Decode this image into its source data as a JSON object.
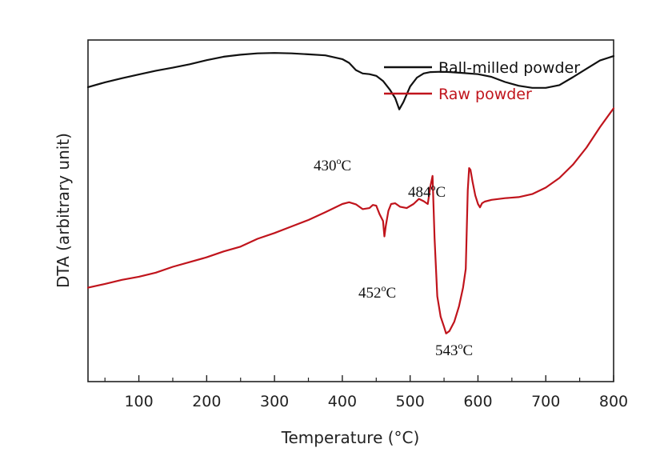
{
  "chart_data": {
    "type": "line",
    "xlabel": "Temperature (°C)",
    "ylabel": "DTA (arbitrary unit)",
    "xlim": [
      25,
      800
    ],
    "xticks": [
      100,
      200,
      300,
      400,
      500,
      600,
      700,
      800
    ],
    "yticks_shown": false,
    "legend_position": "top-right",
    "series": [
      {
        "name": "Ball-milled powder",
        "color": "#111111",
        "points": [
          [
            25,
            0.862
          ],
          [
            50,
            0.876
          ],
          [
            75,
            0.888
          ],
          [
            100,
            0.899
          ],
          [
            125,
            0.91
          ],
          [
            150,
            0.919
          ],
          [
            175,
            0.929
          ],
          [
            200,
            0.941
          ],
          [
            225,
            0.951
          ],
          [
            250,
            0.957
          ],
          [
            275,
            0.961
          ],
          [
            300,
            0.962
          ],
          [
            325,
            0.961
          ],
          [
            350,
            0.958
          ],
          [
            375,
            0.955
          ],
          [
            400,
            0.944
          ],
          [
            410,
            0.933
          ],
          [
            420,
            0.912
          ],
          [
            430,
            0.902
          ],
          [
            440,
            0.9
          ],
          [
            450,
            0.895
          ],
          [
            460,
            0.88
          ],
          [
            470,
            0.855
          ],
          [
            478,
            0.83
          ],
          [
            484,
            0.797
          ],
          [
            490,
            0.818
          ],
          [
            500,
            0.864
          ],
          [
            510,
            0.89
          ],
          [
            520,
            0.902
          ],
          [
            530,
            0.906
          ],
          [
            545,
            0.907
          ],
          [
            560,
            0.906
          ],
          [
            580,
            0.903
          ],
          [
            600,
            0.9
          ],
          [
            620,
            0.892
          ],
          [
            640,
            0.877
          ],
          [
            660,
            0.866
          ],
          [
            680,
            0.86
          ],
          [
            700,
            0.86
          ],
          [
            720,
            0.868
          ],
          [
            740,
            0.891
          ],
          [
            760,
            0.916
          ],
          [
            780,
            0.94
          ],
          [
            800,
            0.953
          ]
        ]
      },
      {
        "name": "Raw powder",
        "color": "#c0141c",
        "points": [
          [
            25,
            0.275
          ],
          [
            50,
            0.286
          ],
          [
            75,
            0.298
          ],
          [
            100,
            0.307
          ],
          [
            125,
            0.319
          ],
          [
            150,
            0.336
          ],
          [
            175,
            0.35
          ],
          [
            200,
            0.364
          ],
          [
            225,
            0.381
          ],
          [
            250,
            0.395
          ],
          [
            275,
            0.418
          ],
          [
            300,
            0.435
          ],
          [
            325,
            0.454
          ],
          [
            350,
            0.473
          ],
          [
            375,
            0.496
          ],
          [
            400,
            0.52
          ],
          [
            410,
            0.525
          ],
          [
            420,
            0.519
          ],
          [
            430,
            0.505
          ],
          [
            440,
            0.508
          ],
          [
            445,
            0.517
          ],
          [
            450,
            0.515
          ],
          [
            455,
            0.49
          ],
          [
            460,
            0.47
          ],
          [
            462,
            0.425
          ],
          [
            464,
            0.455
          ],
          [
            468,
            0.5
          ],
          [
            472,
            0.52
          ],
          [
            478,
            0.522
          ],
          [
            485,
            0.512
          ],
          [
            495,
            0.508
          ],
          [
            505,
            0.52
          ],
          [
            513,
            0.535
          ],
          [
            520,
            0.528
          ],
          [
            526,
            0.52
          ],
          [
            530,
            0.573
          ],
          [
            533,
            0.602
          ],
          [
            536,
            0.42
          ],
          [
            540,
            0.25
          ],
          [
            545,
            0.19
          ],
          [
            550,
            0.16
          ],
          [
            553,
            0.141
          ],
          [
            558,
            0.148
          ],
          [
            565,
            0.175
          ],
          [
            572,
            0.22
          ],
          [
            578,
            0.275
          ],
          [
            582,
            0.33
          ],
          [
            585,
            0.56
          ],
          [
            587,
            0.625
          ],
          [
            589,
            0.62
          ],
          [
            592,
            0.585
          ],
          [
            596,
            0.545
          ],
          [
            600,
            0.52
          ],
          [
            603,
            0.51
          ],
          [
            606,
            0.522
          ],
          [
            610,
            0.527
          ],
          [
            620,
            0.532
          ],
          [
            640,
            0.537
          ],
          [
            660,
            0.54
          ],
          [
            680,
            0.549
          ],
          [
            700,
            0.568
          ],
          [
            720,
            0.596
          ],
          [
            740,
            0.635
          ],
          [
            760,
            0.685
          ],
          [
            780,
            0.745
          ],
          [
            800,
            0.8
          ]
        ]
      }
    ],
    "annotations": [
      {
        "base": "430",
        "sup": "o",
        "unit": "C",
        "x": 430,
        "series": "Ball-milled powder"
      },
      {
        "base": "484",
        "sup": "o",
        "unit": "C",
        "x": 484,
        "series": "Ball-milled powder"
      },
      {
        "base": "452",
        "sup": "o",
        "unit": "C",
        "x": 452,
        "series": "Raw powder"
      },
      {
        "base": "543",
        "sup": "o",
        "unit": "C",
        "x": 543,
        "series": "Raw powder"
      }
    ]
  }
}
